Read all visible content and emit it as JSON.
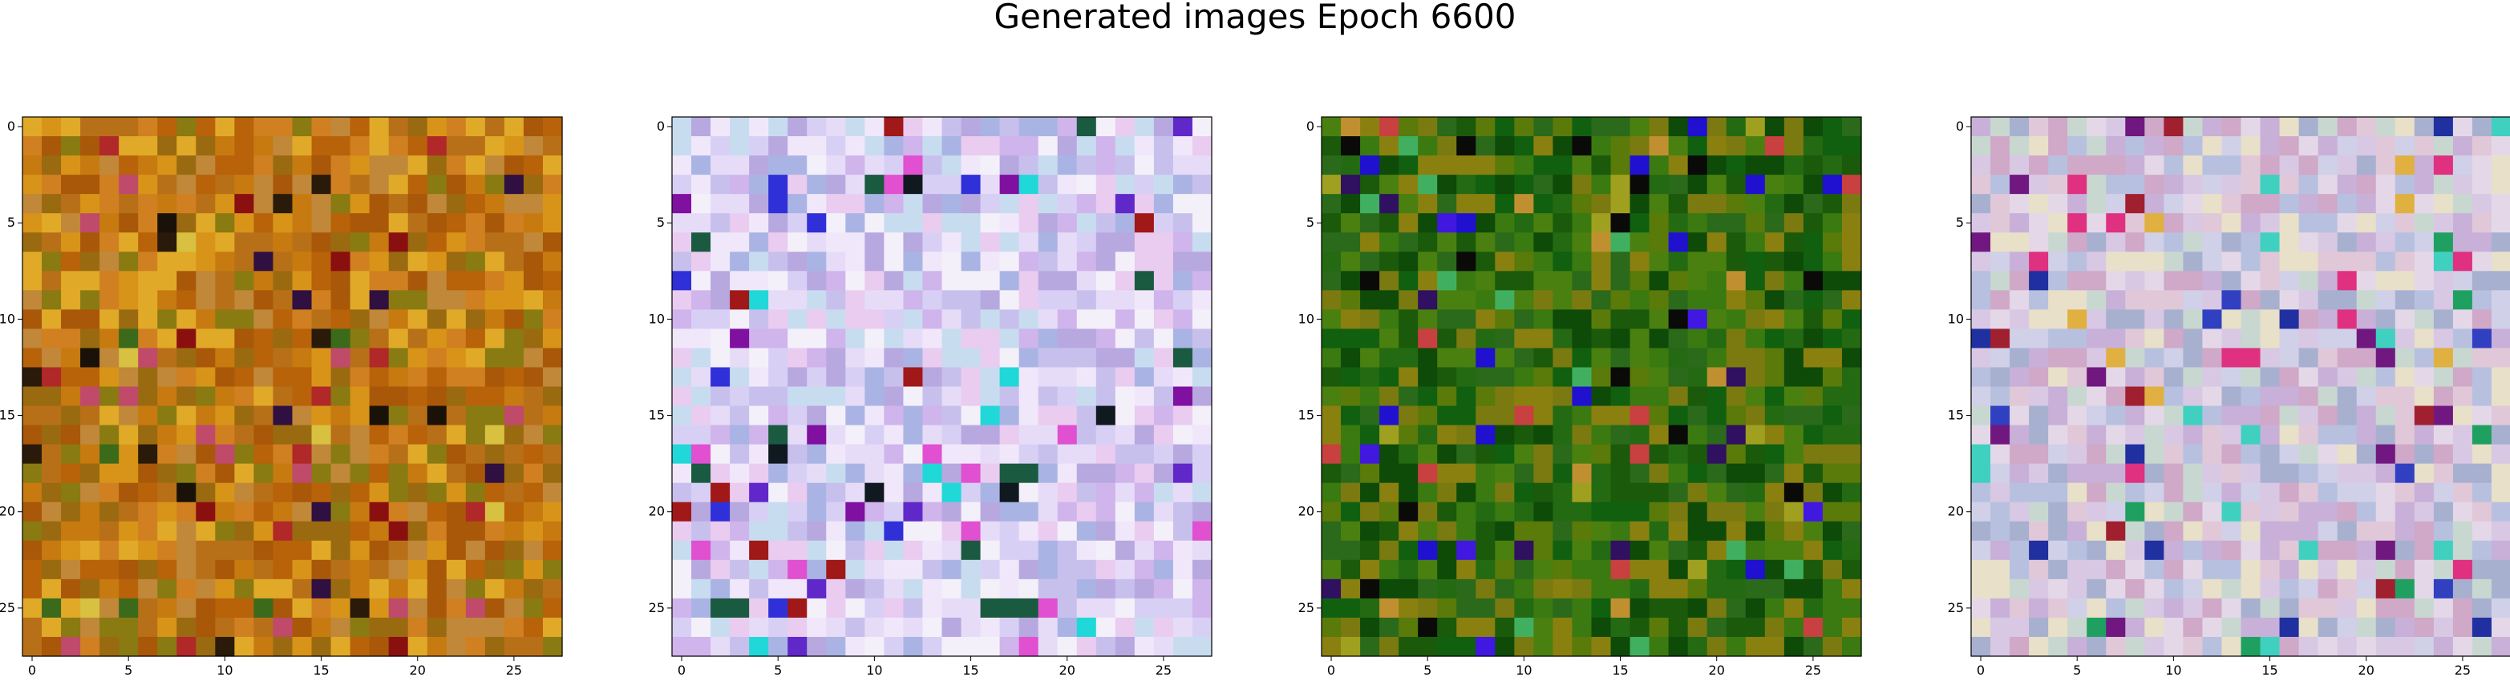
{
  "figure": {
    "title": "Generated images Epoch 6600"
  },
  "chart_data": [
    {
      "type": "heatmap",
      "title": "",
      "xlabel": "",
      "ylabel": "",
      "grid": false,
      "xlim": [
        -0.5,
        27.5
      ],
      "ylim": [
        27.5,
        -0.5
      ],
      "x_ticks": [
        "0",
        "5",
        "10",
        "15",
        "20",
        "25"
      ],
      "y_ticks": [
        "0",
        "5",
        "10",
        "15",
        "20",
        "25"
      ],
      "palette": [
        "#b8620a",
        "#c77a10",
        "#d89418",
        "#e0aa28",
        "#a85808",
        "#b87018",
        "#9a6a10",
        "#8a7a12",
        "#c08838",
        "#d08020"
      ],
      "accents": [
        "#1a1208",
        "#2a1a0a",
        "#8a1010",
        "#b02828",
        "#c04a6a",
        "#3a6a1a",
        "#301040",
        "#d8c040"
      ],
      "accent_rate": 0.08
    },
    {
      "type": "heatmap",
      "title": "",
      "xlabel": "",
      "ylabel": "",
      "grid": false,
      "xlim": [
        -0.5,
        27.5
      ],
      "ylim": [
        27.5,
        -0.5
      ],
      "x_ticks": [
        "0",
        "5",
        "10",
        "15",
        "20",
        "25"
      ],
      "y_ticks": [
        "0",
        "5",
        "10",
        "15",
        "20",
        "25"
      ],
      "palette": [
        "#d8d0f4",
        "#e6dcf8",
        "#c8c0ec",
        "#b8a8e0",
        "#f0e8fa",
        "#c8dcf0",
        "#d0b4ec",
        "#eaccf0",
        "#aab4e4",
        "#f4f0fa"
      ],
      "accents": [
        "#3030d8",
        "#6028c8",
        "#20d8d8",
        "#e050d0",
        "#101820",
        "#1a5a40",
        "#8010a0",
        "#a01818"
      ],
      "accent_rate": 0.09
    },
    {
      "type": "heatmap",
      "title": "",
      "xlabel": "",
      "ylabel": "",
      "grid": false,
      "xlim": [
        -0.5,
        27.5
      ],
      "ylim": [
        27.5,
        -0.5
      ],
      "x_ticks": [
        "0",
        "5",
        "10",
        "15",
        "20",
        "25"
      ],
      "y_ticks": [
        "0",
        "5",
        "10",
        "15",
        "20",
        "25"
      ],
      "palette": [
        "#1a5a0a",
        "#246a12",
        "#0e4a08",
        "#3a7a10",
        "#5a7a0a",
        "#7a7a10",
        "#8a8010",
        "#2a6a1a",
        "#4a8010",
        "#106010"
      ],
      "accents": [
        "#2010d0",
        "#4018e0",
        "#0a0a08",
        "#c09030",
        "#c84040",
        "#40b060",
        "#a0a020",
        "#301060"
      ],
      "accent_rate": 0.1
    },
    {
      "type": "heatmap",
      "title": "",
      "xlabel": "",
      "ylabel": "",
      "grid": false,
      "xlim": [
        -0.5,
        27.5
      ],
      "ylim": [
        27.5,
        -0.5
      ],
      "x_ticks": [
        "0",
        "5",
        "10",
        "15",
        "20",
        "25"
      ],
      "y_ticks": [
        "0",
        "5",
        "10",
        "15",
        "20",
        "25"
      ],
      "palette": [
        "#d8c8e4",
        "#c8b0d8",
        "#e4d8e8",
        "#d0a8c8",
        "#b8c0e0",
        "#e0c8d8",
        "#c8d8d0",
        "#a8b0d0",
        "#e8e0c8",
        "#d0d0e8"
      ],
      "accents": [
        "#3040c0",
        "#e03080",
        "#20a060",
        "#a02030",
        "#2030a0",
        "#40d0c0",
        "#701880",
        "#e0b040"
      ],
      "accent_rate": 0.09
    }
  ]
}
